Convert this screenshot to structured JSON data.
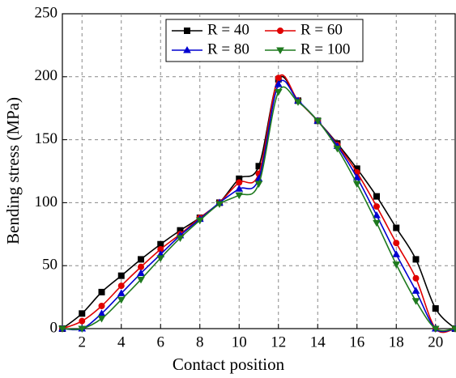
{
  "chart_data": {
    "type": "line",
    "x_label": "Contact position",
    "y_label": "Bending stress (MPa)",
    "x": [
      1,
      2,
      3,
      4,
      5,
      6,
      7,
      8,
      9,
      10,
      11,
      12,
      13,
      14,
      15,
      16,
      17,
      18,
      19,
      20,
      21
    ],
    "series": [
      {
        "name": "R = 40",
        "color": "#000000",
        "marker": "square",
        "values": [
          0,
          12,
          29,
          42,
          55,
          67,
          78,
          88,
          100,
          119,
          129,
          198,
          181,
          165,
          147,
          127,
          105,
          80,
          55,
          16,
          0
        ]
      },
      {
        "name": "R = 60",
        "color": "#e00000",
        "marker": "circle",
        "values": [
          0,
          6,
          18,
          34,
          49,
          63,
          75,
          88,
          100,
          116,
          123,
          199,
          181,
          165,
          146,
          124,
          97,
          68,
          40,
          0,
          0
        ]
      },
      {
        "name": "R = 80",
        "color": "#0000d0",
        "marker": "triangle-up",
        "values": [
          0,
          0,
          12,
          28,
          44,
          59,
          74,
          87,
          100,
          111,
          119,
          194,
          181,
          165,
          145,
          120,
          90,
          59,
          30,
          0,
          0
        ]
      },
      {
        "name": "R = 100",
        "color": "#1f7a1f",
        "marker": "triangle-down",
        "values": [
          0,
          0,
          8,
          23,
          39,
          56,
          72,
          86,
          99,
          106,
          115,
          188,
          180,
          165,
          143,
          115,
          84,
          51,
          22,
          0,
          0
        ]
      }
    ],
    "xlim": [
      1,
      21
    ],
    "xticks": [
      2,
      4,
      6,
      8,
      10,
      12,
      14,
      16,
      18,
      20
    ],
    "ylim": [
      0,
      250
    ],
    "yticks": [
      0,
      50,
      100,
      150,
      200,
      250
    ],
    "grid": true,
    "legend": "top"
  }
}
